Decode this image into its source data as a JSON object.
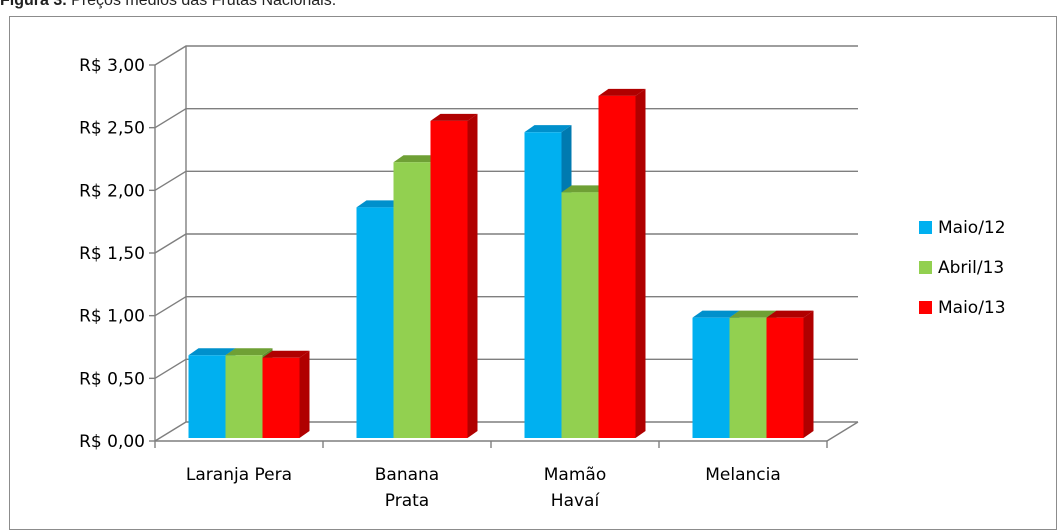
{
  "caption": {
    "label": "Figura 3.",
    "text": "Preços médios das Frutas Nacionais."
  },
  "chart_data": {
    "type": "bar",
    "title": "",
    "xlabel": "",
    "ylabel": "",
    "categories": [
      [
        "Laranja Pera"
      ],
      [
        "Banana",
        "Prata"
      ],
      [
        "Mamão",
        "Havaí"
      ],
      [
        "Melancia"
      ]
    ],
    "series": [
      {
        "name": "Maio/12",
        "values": [
          0.7,
          1.88,
          2.48,
          1.0
        ],
        "color": "#00B0F0",
        "top": "#0090CC",
        "side": "#007AB0"
      },
      {
        "name": "Abril/13",
        "values": [
          0.7,
          2.24,
          2.0,
          1.0
        ],
        "color": "#92D050",
        "top": "#6FA035",
        "side": "#5E8C2C"
      },
      {
        "name": "Maio/13",
        "values": [
          0.68,
          2.57,
          2.77,
          1.0
        ],
        "color": "#FF0000",
        "top": "#B00000",
        "side": "#B00000"
      }
    ],
    "ylim": [
      0,
      3.0
    ],
    "yticks": [
      0,
      0.5,
      1.0,
      1.5,
      2.0,
      2.5,
      3.0
    ],
    "ytick_labels": [
      "R$ 0,00",
      "R$ 0,50",
      "R$ 1,00",
      "R$ 1,50",
      "R$ 2,00",
      "R$ 2,50",
      "R$ 3,00"
    ],
    "grid": true,
    "legend_position": "right",
    "three_d": true
  }
}
